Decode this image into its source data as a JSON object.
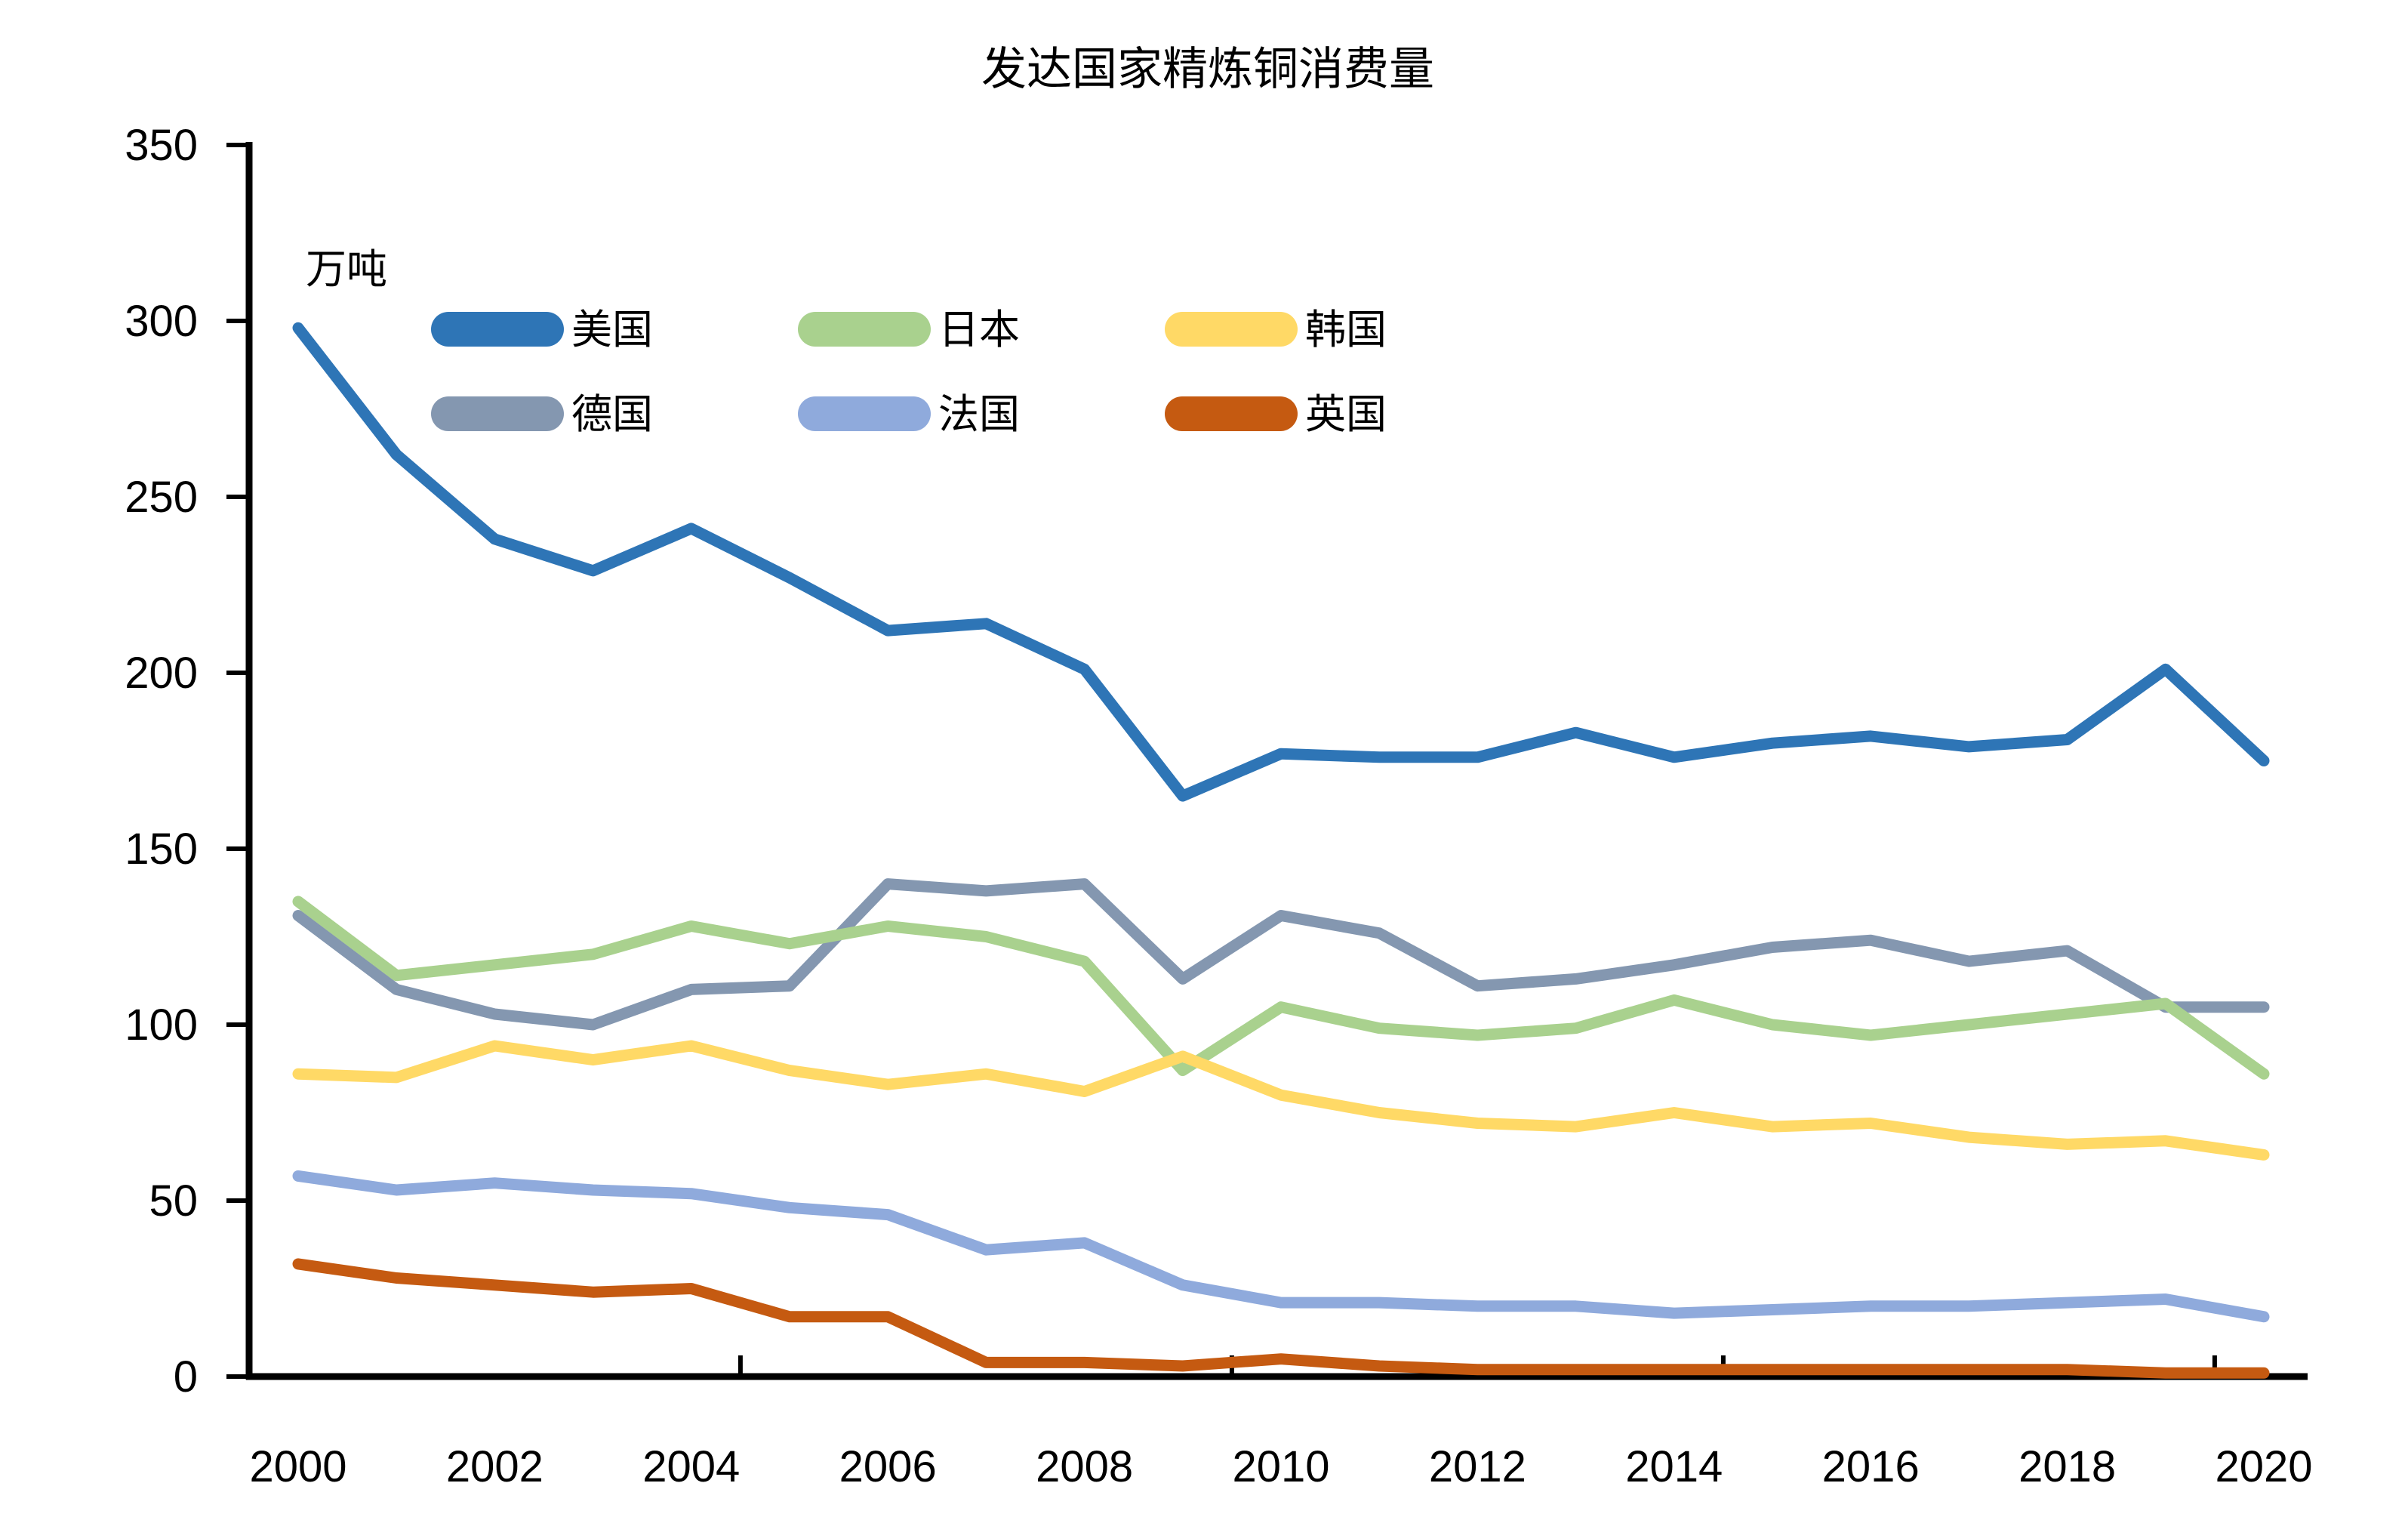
{
  "chart": {
    "title": "发达国家精炼铜消费量",
    "unit_label": "万吨"
  },
  "chart_data": {
    "type": "line",
    "title": "发达国家精炼铜消费量",
    "ylabel": "万吨",
    "xlabel": "",
    "x": [
      2000,
      2001,
      2002,
      2003,
      2004,
      2005,
      2006,
      2007,
      2008,
      2009,
      2010,
      2011,
      2012,
      2013,
      2014,
      2015,
      2016,
      2017,
      2018,
      2019,
      2020
    ],
    "x_tick_labels": [
      "2000",
      "2002",
      "2004",
      "2006",
      "2008",
      "2010",
      "2012",
      "2014",
      "2016",
      "2018",
      "2020"
    ],
    "ylim": [
      0,
      350
    ],
    "y_tick_step": 50,
    "y_tick_labels": [
      "0",
      "50",
      "100",
      "150",
      "200",
      "250",
      "300",
      "350"
    ],
    "grid": false,
    "legend_position": "top-left-inside, 2 rows x 3 columns",
    "series": [
      {
        "name": "美国",
        "key": "usa",
        "color": "#2E75B6",
        "values": [
          298,
          262,
          238,
          229,
          241,
          227,
          212,
          214,
          201,
          165,
          177,
          176,
          176,
          183,
          176,
          180,
          182,
          179,
          181,
          201,
          175
        ]
      },
      {
        "name": "德国",
        "key": "germany",
        "color": "#8497B0",
        "values": [
          131,
          110,
          103,
          100,
          110,
          111,
          140,
          138,
          140,
          113,
          131,
          126,
          111,
          113,
          117,
          122,
          124,
          118,
          121,
          105,
          105
        ]
      },
      {
        "name": "日本",
        "key": "japan",
        "color": "#A9D18E",
        "values": [
          135,
          114,
          117,
          120,
          128,
          123,
          128,
          125,
          118,
          87,
          105,
          99,
          97,
          99,
          107,
          100,
          97,
          100,
          103,
          106,
          86
        ]
      },
      {
        "name": "韩国",
        "key": "korea",
        "color": "#FFD966",
        "values": [
          86,
          85,
          94,
          90,
          94,
          87,
          83,
          86,
          81,
          91,
          80,
          75,
          72,
          71,
          75,
          71,
          72,
          68,
          66,
          67,
          63
        ]
      },
      {
        "name": "法国",
        "key": "france",
        "color": "#8FAADC",
        "values": [
          57,
          53,
          55,
          53,
          52,
          48,
          46,
          36,
          38,
          26,
          21,
          21,
          20,
          20,
          18,
          19,
          20,
          20,
          21,
          22,
          17
        ]
      },
      {
        "name": "英国",
        "key": "uk",
        "color": "#C55A11",
        "values": [
          32,
          28,
          26,
          24,
          25,
          17,
          17,
          4,
          4,
          3,
          5,
          3,
          2,
          2,
          2,
          2,
          2,
          2,
          2,
          1,
          1
        ]
      }
    ],
    "legend_order": [
      "美国",
      "日本",
      "韩国",
      "德国",
      "法国",
      "英国"
    ]
  }
}
